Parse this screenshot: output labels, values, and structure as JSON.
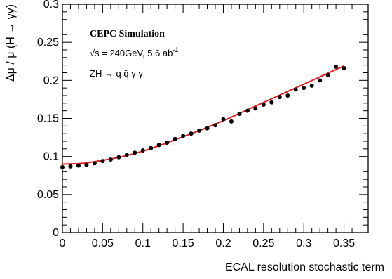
{
  "chart_data": {
    "type": "scatter",
    "xlabel": "ECAL resolution stochastic term",
    "ylabel": "Δμ / μ (H → γγ)",
    "xlim": [
      0,
      0.38
    ],
    "ylim": [
      0,
      0.3
    ],
    "x_ticks": [
      0,
      0.05,
      0.1,
      0.15,
      0.2,
      0.25,
      0.3,
      0.35
    ],
    "x_tick_labels": [
      "0",
      "0.05",
      "0.1",
      "0.15",
      "0.2",
      "0.25",
      "0.3",
      "0.35"
    ],
    "y_ticks": [
      0,
      0.05,
      0.1,
      0.15,
      0.2,
      0.25,
      0.3
    ],
    "y_tick_labels": [
      "0",
      "0.05",
      "0.1",
      "0.15",
      "0.2",
      "0.25",
      "0.3"
    ],
    "grid": false,
    "annotations": {
      "line1": "CEPC Simulation",
      "line2_sqrt": "√s",
      "line2_rest": " = 240GeV, 5.6 ab",
      "line2_sup": "-1",
      "line3": "ZH → q q̄ γ γ"
    },
    "series": [
      {
        "marker": "circle",
        "color": "#000000",
        "x": [
          0,
          0.01,
          0.02,
          0.03,
          0.04,
          0.05,
          0.06,
          0.07,
          0.08,
          0.09,
          0.1,
          0.11,
          0.12,
          0.13,
          0.14,
          0.15,
          0.16,
          0.17,
          0.18,
          0.19,
          0.2,
          0.21,
          0.22,
          0.23,
          0.24,
          0.25,
          0.26,
          0.27,
          0.28,
          0.29,
          0.3,
          0.31,
          0.32,
          0.33,
          0.34,
          0.35
        ],
        "y": [
          0.086,
          0.087,
          0.088,
          0.089,
          0.091,
          0.094,
          0.096,
          0.099,
          0.102,
          0.105,
          0.108,
          0.111,
          0.115,
          0.118,
          0.123,
          0.127,
          0.13,
          0.134,
          0.137,
          0.141,
          0.149,
          0.146,
          0.156,
          0.16,
          0.163,
          0.168,
          0.171,
          0.178,
          0.18,
          0.188,
          0.19,
          0.193,
          0.2,
          0.207,
          0.218,
          0.216
        ]
      },
      {
        "type": "line",
        "style": "fit-curve",
        "color": "#e8191f",
        "x": [
          0,
          0.025,
          0.05,
          0.075,
          0.1,
          0.125,
          0.15,
          0.175,
          0.2,
          0.225,
          0.25,
          0.275,
          0.3,
          0.325,
          0.35
        ],
        "y": [
          0.09,
          0.091,
          0.095,
          0.1,
          0.107,
          0.116,
          0.126,
          0.136,
          0.147,
          0.159,
          0.171,
          0.183,
          0.195,
          0.207,
          0.219
        ]
      }
    ]
  }
}
